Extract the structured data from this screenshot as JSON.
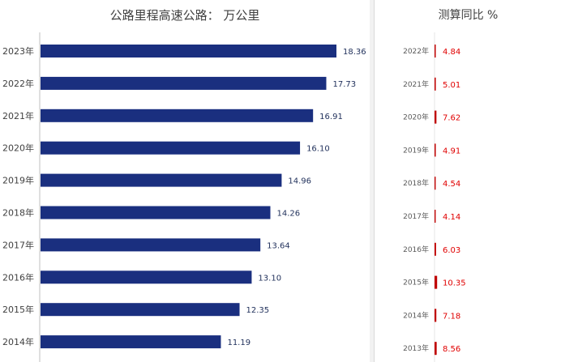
{
  "left_chart": {
    "title": "公路里程高速公路：  万公里"
  },
  "right_chart": {
    "title": "测算同比 %"
  },
  "chart_data": [
    {
      "type": "bar",
      "orientation": "horizontal",
      "title": "公路里程高速公路：  万公里",
      "categories": [
        "2023年",
        "2022年",
        "2021年",
        "2020年",
        "2019年",
        "2018年",
        "2017年",
        "2016年",
        "2015年",
        "2014年"
      ],
      "values": [
        18.36,
        17.73,
        16.91,
        16.1,
        14.96,
        14.26,
        13.64,
        13.1,
        12.35,
        11.19
      ],
      "value_labels": [
        "18.36",
        "17.73",
        "16.91",
        "16.10",
        "14.96",
        "14.26",
        "13.64",
        "13.10",
        "12.35",
        "11.19"
      ],
      "xlim": [
        0,
        20
      ],
      "bar_color": "#1a2f7f",
      "grid": false
    },
    {
      "type": "bar",
      "orientation": "horizontal",
      "title": "测算同比 %",
      "categories": [
        "2022年",
        "2021年",
        "2020年",
        "2019年",
        "2018年",
        "2017年",
        "2016年",
        "2015年",
        "2014年",
        "2013年"
      ],
      "values": [
        4.84,
        5.01,
        7.62,
        4.91,
        4.54,
        4.14,
        6.03,
        10.35,
        7.18,
        8.56
      ],
      "value_labels": [
        "4.84",
        "5.01",
        "7.62",
        "4.91",
        "4.54",
        "4.14",
        "6.03",
        "10.35",
        "7.18",
        "8.56"
      ],
      "bar_color": "#c00000",
      "label_color": "#e00000",
      "grid": false
    }
  ]
}
